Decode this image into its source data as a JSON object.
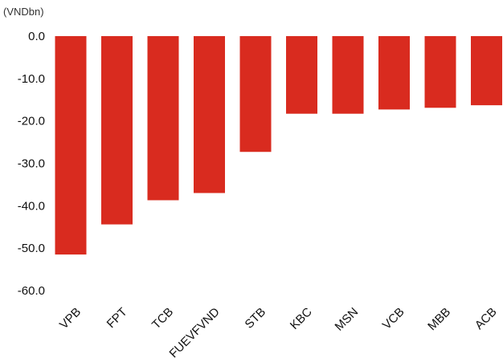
{
  "chart_data": {
    "type": "bar",
    "unit_label": "(VNDbn)",
    "categories": [
      "VPB",
      "FPT",
      "TCB",
      "FUEVFVND",
      "STB",
      "KBC",
      "MSN",
      "VCB",
      "MBB",
      "ACB"
    ],
    "values": [
      -51.5,
      -44.4,
      -38.7,
      -37.0,
      -27.3,
      -18.3,
      -18.3,
      -17.3,
      -16.9,
      -16.3
    ],
    "ylim": [
      -60,
      0
    ],
    "yticks": [
      "0.0",
      "-10.0",
      "-20.0",
      "-30.0",
      "-40.0",
      "-50.0",
      "-60.0"
    ],
    "grid": false,
    "bar_color": "#d92b1f"
  }
}
